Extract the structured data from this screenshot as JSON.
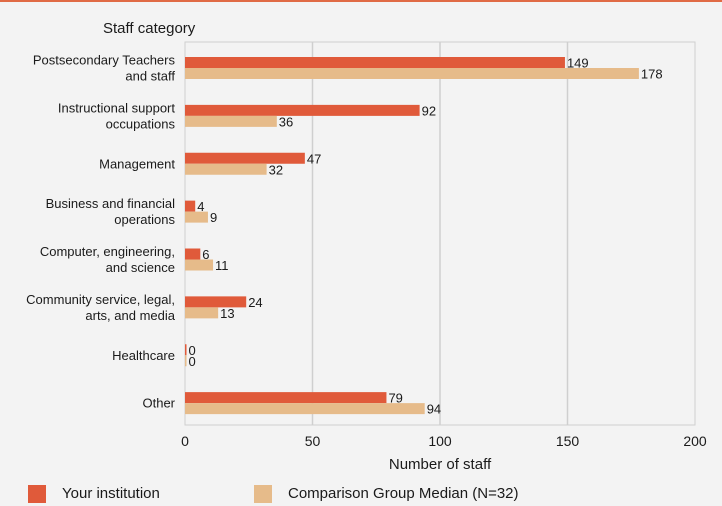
{
  "chart_data": {
    "type": "bar",
    "orientation": "horizontal",
    "ylabel": "Staff category",
    "xlabel": "Number of staff",
    "categories": [
      [
        "Postsecondary Teachers",
        "and staff"
      ],
      [
        "Instructional support",
        "occupations"
      ],
      [
        "Management"
      ],
      [
        "Business and financial",
        "operations"
      ],
      [
        "Computer, engineering,",
        "and science"
      ],
      [
        "Community service, legal,",
        "arts, and media"
      ],
      [
        "Healthcare"
      ],
      [
        "Other"
      ]
    ],
    "series": [
      {
        "name": "Your institution",
        "color": "#e05a3a",
        "values": [
          149,
          92,
          47,
          4,
          6,
          24,
          0,
          79
        ]
      },
      {
        "name": "Comparison Group Median (N=32)",
        "color": "#e6bb8a",
        "values": [
          178,
          36,
          32,
          9,
          11,
          13,
          0,
          94
        ]
      }
    ],
    "xlim": [
      0,
      200
    ],
    "xticks": [
      0,
      50,
      100,
      150,
      200
    ],
    "grid": true,
    "legend_position": "bottom"
  },
  "colors": {
    "accent": "#e06a45",
    "plot_background": "#f3f3f3",
    "gridline": "#cfcfcf"
  }
}
